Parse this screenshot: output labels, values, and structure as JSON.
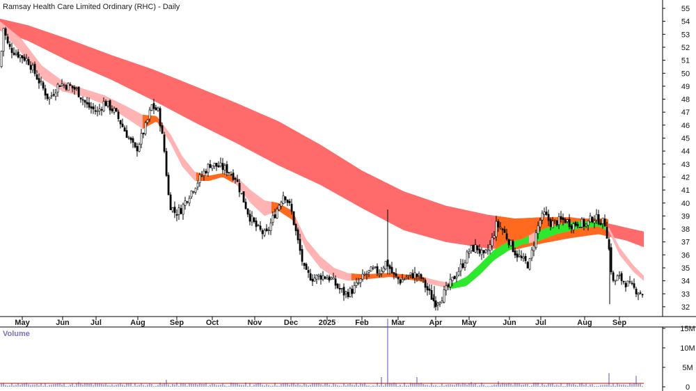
{
  "chart_data": {
    "type": "candlestick",
    "title": "Ramsay Health Care Limited Ordinary (RHC) - Daily",
    "price_axis": {
      "ticks": [
        "55",
        "54",
        "53",
        "52",
        "51",
        "50",
        "49",
        "48",
        "47",
        "46",
        "45",
        "44",
        "43",
        "42",
        "41",
        "40",
        "39",
        "38",
        "37",
        "36",
        "35",
        "34",
        "33",
        "32"
      ],
      "ylim": [
        31,
        55.5
      ]
    },
    "volume_axis": {
      "label": "Volume",
      "ticks": [
        "15M",
        "10M",
        "5M",
        "0"
      ],
      "ylim": [
        0,
        18000000
      ]
    },
    "x_labels": [
      "May",
      "Jun",
      "Jul",
      "Aug",
      "Sep",
      "Oct",
      "Nov",
      "Dec",
      "2025",
      "Feb",
      "Mar",
      "Apr",
      "May",
      "Jun",
      "Jul",
      "Aug",
      "Sep"
    ],
    "price_path": [
      {
        "x": 0,
        "y": 50.5
      },
      {
        "x": 5,
        "y": 53.5
      },
      {
        "x": 12,
        "y": 52
      },
      {
        "x": 25,
        "y": 51.5
      },
      {
        "x": 40,
        "y": 51
      },
      {
        "x": 55,
        "y": 49.5
      },
      {
        "x": 70,
        "y": 48
      },
      {
        "x": 85,
        "y": 49.2
      },
      {
        "x": 100,
        "y": 49
      },
      {
        "x": 110,
        "y": 48.7
      },
      {
        "x": 125,
        "y": 47.5
      },
      {
        "x": 140,
        "y": 47
      },
      {
        "x": 150,
        "y": 47.8
      },
      {
        "x": 165,
        "y": 47
      },
      {
        "x": 180,
        "y": 45.5
      },
      {
        "x": 195,
        "y": 44
      },
      {
        "x": 210,
        "y": 46
      },
      {
        "x": 218,
        "y": 47.5
      },
      {
        "x": 228,
        "y": 47
      },
      {
        "x": 236,
        "y": 44
      },
      {
        "x": 243,
        "y": 40
      },
      {
        "x": 252,
        "y": 39.2
      },
      {
        "x": 260,
        "y": 39.5
      },
      {
        "x": 270,
        "y": 40.5
      },
      {
        "x": 282,
        "y": 41.5
      },
      {
        "x": 292,
        "y": 42.3
      },
      {
        "x": 302,
        "y": 43
      },
      {
        "x": 315,
        "y": 42.8
      },
      {
        "x": 325,
        "y": 42.6
      },
      {
        "x": 338,
        "y": 42
      },
      {
        "x": 348,
        "y": 40.5
      },
      {
        "x": 358,
        "y": 39
      },
      {
        "x": 370,
        "y": 38
      },
      {
        "x": 382,
        "y": 37.5
      },
      {
        "x": 392,
        "y": 38.8
      },
      {
        "x": 400,
        "y": 39.8
      },
      {
        "x": 408,
        "y": 40.8
      },
      {
        "x": 418,
        "y": 39.5
      },
      {
        "x": 428,
        "y": 37
      },
      {
        "x": 438,
        "y": 34.6
      },
      {
        "x": 450,
        "y": 34.2
      },
      {
        "x": 462,
        "y": 34.4
      },
      {
        "x": 475,
        "y": 34.2
      },
      {
        "x": 485,
        "y": 33.5
      },
      {
        "x": 495,
        "y": 33
      },
      {
        "x": 505,
        "y": 33.2
      },
      {
        "x": 515,
        "y": 33.8
      },
      {
        "x": 525,
        "y": 34.5
      },
      {
        "x": 535,
        "y": 34.8
      },
      {
        "x": 545,
        "y": 34.7
      },
      {
        "x": 555,
        "y": 35.5
      },
      {
        "x": 565,
        "y": 34.4
      },
      {
        "x": 575,
        "y": 34
      },
      {
        "x": 585,
        "y": 34.3
      },
      {
        "x": 595,
        "y": 34.5
      },
      {
        "x": 605,
        "y": 34.2
      },
      {
        "x": 615,
        "y": 33.2
      },
      {
        "x": 625,
        "y": 32.3
      },
      {
        "x": 635,
        "y": 32.8
      },
      {
        "x": 645,
        "y": 33.6
      },
      {
        "x": 655,
        "y": 34.5
      },
      {
        "x": 665,
        "y": 35.3
      },
      {
        "x": 675,
        "y": 36.4
      },
      {
        "x": 685,
        "y": 36.6
      },
      {
        "x": 695,
        "y": 35.8
      },
      {
        "x": 705,
        "y": 36.8
      },
      {
        "x": 713,
        "y": 38.3
      },
      {
        "x": 720,
        "y": 38.1
      },
      {
        "x": 730,
        "y": 37.2
      },
      {
        "x": 740,
        "y": 36.2
      },
      {
        "x": 750,
        "y": 35.6
      },
      {
        "x": 760,
        "y": 35.2
      },
      {
        "x": 768,
        "y": 37.2
      },
      {
        "x": 775,
        "y": 38.6
      },
      {
        "x": 782,
        "y": 39.1
      },
      {
        "x": 792,
        "y": 38.4
      },
      {
        "x": 802,
        "y": 38.6
      },
      {
        "x": 812,
        "y": 38.7
      },
      {
        "x": 822,
        "y": 38.3
      },
      {
        "x": 832,
        "y": 38.5
      },
      {
        "x": 842,
        "y": 38.3
      },
      {
        "x": 852,
        "y": 38.9
      },
      {
        "x": 860,
        "y": 38.7
      },
      {
        "x": 870,
        "y": 38.4
      },
      {
        "x": 876,
        "y": 36
      },
      {
        "x": 880,
        "y": 33.8
      },
      {
        "x": 888,
        "y": 34.3
      },
      {
        "x": 898,
        "y": 33.9
      },
      {
        "x": 910,
        "y": 33.4
      },
      {
        "x": 920,
        "y": 33.1
      },
      {
        "x": 925,
        "y": 33
      }
    ],
    "volume_spikes": [
      {
        "x": 557,
        "v": 17500000
      },
      {
        "x": 548,
        "v": 2500000
      },
      {
        "x": 875,
        "v": 3500000
      },
      {
        "x": 913,
        "v": 2800000
      },
      {
        "x": 598,
        "v": 2500000
      },
      {
        "x": 240,
        "v": 1800000
      },
      {
        "x": 114,
        "v": 1200000
      },
      {
        "x": 716,
        "v": 1400000
      },
      {
        "x": 420,
        "v": 1000000
      },
      {
        "x": 678,
        "v": 1200000
      }
    ],
    "bands": {
      "long_upper": [
        [
          0,
          54.2
        ],
        [
          40,
          53.7
        ],
        [
          100,
          52.6
        ],
        [
          160,
          51.4
        ],
        [
          220,
          50.3
        ],
        [
          280,
          49
        ],
        [
          340,
          47.7
        ],
        [
          400,
          46.3
        ],
        [
          460,
          44.5
        ],
        [
          520,
          42.5
        ],
        [
          580,
          40.9
        ],
        [
          640,
          39.8
        ],
        [
          700,
          39.1
        ],
        [
          740,
          38.8
        ],
        [
          780,
          38.9
        ],
        [
          820,
          38.9
        ],
        [
          860,
          38.6
        ],
        [
          900,
          38.1
        ],
        [
          925,
          37.8
        ]
      ],
      "long_lower": [
        [
          0,
          53.3
        ],
        [
          40,
          52.5
        ],
        [
          100,
          50.9
        ],
        [
          160,
          49.5
        ],
        [
          220,
          47.9
        ],
        [
          280,
          46.2
        ],
        [
          340,
          44.6
        ],
        [
          400,
          42.9
        ],
        [
          460,
          41.4
        ],
        [
          520,
          39.6
        ],
        [
          580,
          37.9
        ],
        [
          640,
          37
        ],
        [
          700,
          36.5
        ],
        [
          740,
          36.4
        ],
        [
          780,
          36.9
        ],
        [
          820,
          37.3
        ],
        [
          860,
          37.6
        ],
        [
          900,
          37.1
        ],
        [
          925,
          36.6
        ]
      ],
      "short_upper": [
        [
          0,
          54
        ],
        [
          30,
          52.7
        ],
        [
          60,
          50.6
        ],
        [
          90,
          49.4
        ],
        [
          120,
          48.8
        ],
        [
          150,
          48.3
        ],
        [
          180,
          47.5
        ],
        [
          205,
          46.8
        ],
        [
          225,
          46.7
        ],
        [
          245,
          45.3
        ],
        [
          262,
          43.6
        ],
        [
          280,
          42.4
        ],
        [
          300,
          42.1
        ],
        [
          320,
          42.3
        ],
        [
          340,
          42
        ],
        [
          360,
          41
        ],
        [
          380,
          40.2
        ],
        [
          400,
          40
        ],
        [
          420,
          39.4
        ],
        [
          440,
          37.2
        ],
        [
          460,
          35.9
        ],
        [
          480,
          35
        ],
        [
          500,
          34.6
        ],
        [
          520,
          34.5
        ],
        [
          560,
          34.6
        ],
        [
          600,
          34.4
        ],
        [
          630,
          34
        ],
        [
          650,
          33.8
        ],
        [
          670,
          34.3
        ],
        [
          690,
          35.3
        ],
        [
          710,
          36.4
        ],
        [
          730,
          37
        ],
        [
          750,
          37.2
        ],
        [
          770,
          37.8
        ],
        [
          800,
          38.3
        ],
        [
          830,
          38.6
        ],
        [
          860,
          38.6
        ],
        [
          875,
          38.1
        ],
        [
          890,
          36.6
        ],
        [
          910,
          35.2
        ],
        [
          925,
          34.4
        ]
      ],
      "short_lower": [
        [
          0,
          53.4
        ],
        [
          30,
          51.6
        ],
        [
          60,
          49.6
        ],
        [
          90,
          48.6
        ],
        [
          120,
          48.2
        ],
        [
          150,
          47.6
        ],
        [
          180,
          46.6
        ],
        [
          205,
          45.7
        ],
        [
          225,
          46.3
        ],
        [
          245,
          44.6
        ],
        [
          262,
          42.8
        ],
        [
          280,
          41.7
        ],
        [
          300,
          41.7
        ],
        [
          320,
          42
        ],
        [
          340,
          41.4
        ],
        [
          360,
          40
        ],
        [
          380,
          39
        ],
        [
          400,
          39.4
        ],
        [
          420,
          38.7
        ],
        [
          440,
          36.4
        ],
        [
          460,
          35
        ],
        [
          480,
          34.3
        ],
        [
          500,
          34
        ],
        [
          520,
          34.1
        ],
        [
          560,
          34.3
        ],
        [
          600,
          34
        ],
        [
          630,
          33.6
        ],
        [
          650,
          33.4
        ],
        [
          670,
          33.6
        ],
        [
          690,
          34.5
        ],
        [
          710,
          35.6
        ],
        [
          730,
          36.3
        ],
        [
          750,
          36.8
        ],
        [
          770,
          37
        ],
        [
          800,
          37.6
        ],
        [
          830,
          38
        ],
        [
          860,
          38.2
        ],
        [
          875,
          37.8
        ],
        [
          890,
          36
        ],
        [
          910,
          34.7
        ],
        [
          925,
          34
        ]
      ]
    },
    "colors": {
      "long_band": "#ff6b6b",
      "short_band": "#ffb3b3",
      "overlap_orange": "#ff6a1f",
      "uptrend_green": "#2ee82e",
      "candle": "#000000",
      "volume_bar": "#5b4db8",
      "volume_average": "#cc0000"
    },
    "grid": false,
    "legend": "none"
  }
}
